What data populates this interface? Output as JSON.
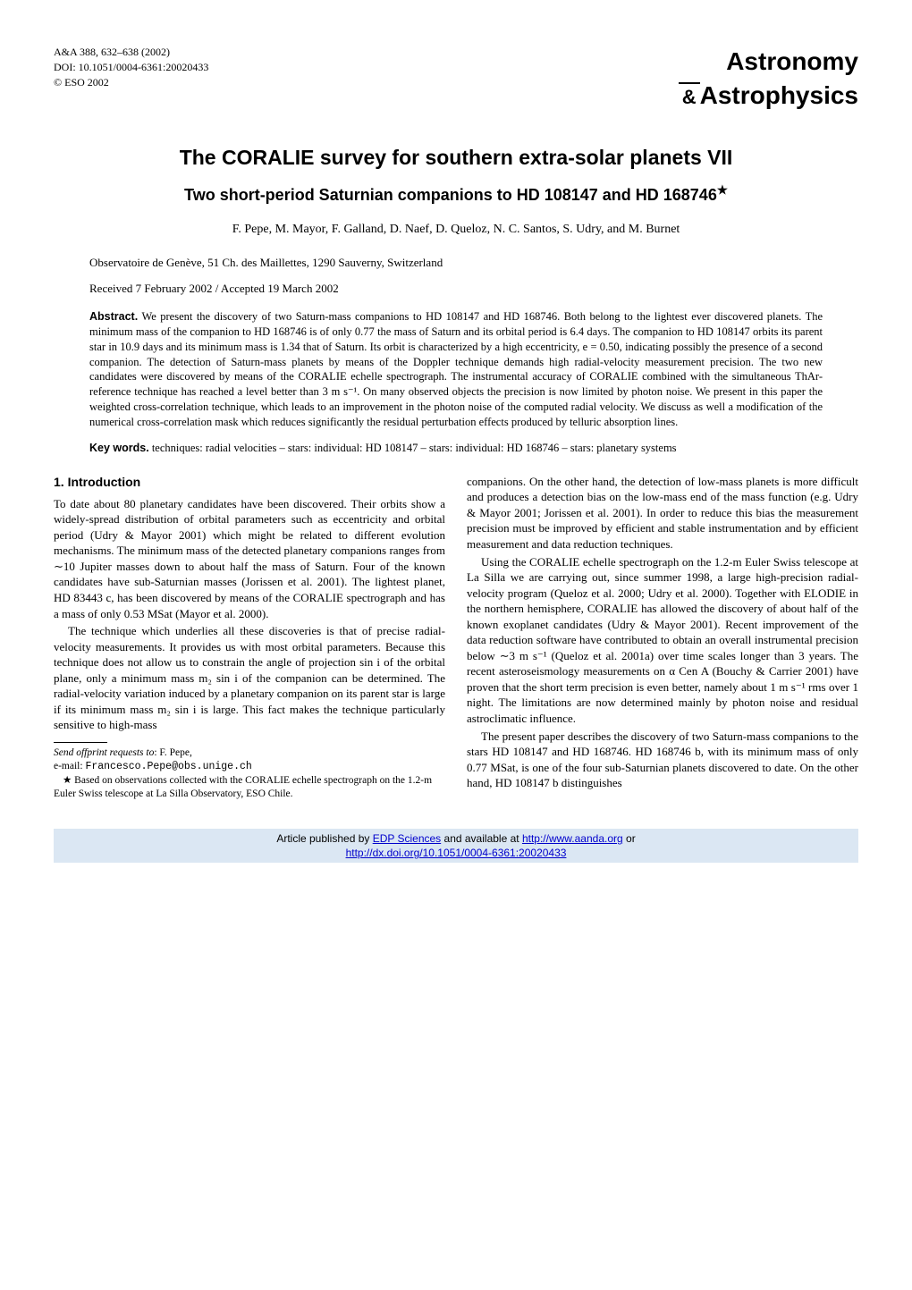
{
  "header": {
    "journal_ref": "A&A 388, 632–638 (2002)",
    "doi": "DOI: 10.1051/0004-6361:20020433",
    "copyright": "© ESO 2002",
    "logo_top": "Astronomy",
    "logo_amp": "&",
    "logo_bottom": "Astrophysics"
  },
  "title": "The CORALIE survey for southern extra-solar planets VII",
  "subtitle": "Two short-period Saturnian companions to HD 108147 and HD 168746",
  "subtitle_star": "★",
  "authors": "F. Pepe, M. Mayor, F. Galland, D. Naef, D. Queloz, N. C. Santos, S. Udry, and M. Burnet",
  "affiliation": "Observatoire de Genève, 51 Ch. des Maillettes, 1290 Sauverny, Switzerland",
  "dates": "Received 7 February 2002 / Accepted 19 March 2002",
  "abstract_label": "Abstract.",
  "abstract_text": "We present the discovery of two Saturn-mass companions to HD 108147 and HD 168746. Both belong to the lightest ever discovered planets. The minimum mass of the companion to HD 168746 is of only 0.77 the mass of Saturn and its orbital period is 6.4 days. The companion to HD 108147 orbits its parent star in 10.9 days and its minimum mass is 1.34 that of Saturn. Its orbit is characterized by a high eccentricity, e = 0.50, indicating possibly the presence of a second companion. The detection of Saturn-mass planets by means of the Doppler technique demands high radial-velocity measurement precision. The two new candidates were discovered by means of the CORALIE echelle spectrograph. The instrumental accuracy of CORALIE combined with the simultaneous ThAr-reference technique has reached a level better than 3 m s⁻¹. On many observed objects the precision is now limited by photon noise. We present in this paper the weighted cross-correlation technique, which leads to an improvement in the photon noise of the computed radial velocity. We discuss as well a modification of the numerical cross-correlation mask which reduces significantly the residual perturbation effects produced by telluric absorption lines.",
  "keywords_label": "Key words.",
  "keywords_text": "techniques: radial velocities – stars: individual: HD 108147 – stars: individual: HD 168746 – stars: planetary systems",
  "section1": {
    "heading": "1. Introduction",
    "p1": "To date about 80 planetary candidates have been discovered. Their orbits show a widely-spread distribution of orbital parameters such as eccentricity and orbital period (Udry & Mayor 2001) which might be related to different evolution mechanisms. The minimum mass of the detected planetary companions ranges from ∼10 Jupiter masses down to about half the mass of Saturn. Four of the known candidates have sub-Saturnian masses (Jorissen et al. 2001). The lightest planet, HD 83443 c, has been discovered by means of the CORALIE spectrograph and has a mass of only 0.53 MSat (Mayor et al. 2000).",
    "p2": "The technique which underlies all these discoveries is that of precise radial-velocity measurements. It provides us with most orbital parameters. Because this technique does not allow us to constrain the angle of projection sin i of the orbital plane, only a minimum mass m₂ sin i of the companion can be determined. The radial-velocity variation induced by a planetary companion on its parent star is large if its minimum mass m₂ sin i is large. This fact makes the technique particularly sensitive to high-mass",
    "p3": "companions. On the other hand, the detection of low-mass planets is more difficult and produces a detection bias on the low-mass end of the mass function (e.g. Udry & Mayor 2001; Jorissen et al. 2001). In order to reduce this bias the measurement precision must be improved by efficient and stable instrumentation and by efficient measurement and data reduction techniques.",
    "p4": "Using the CORALIE echelle spectrograph on the 1.2-m Euler Swiss telescope at La Silla we are carrying out, since summer 1998, a large high-precision radial-velocity program (Queloz et al. 2000; Udry et al. 2000). Together with ELODIE in the northern hemisphere, CORALIE has allowed the discovery of about half of the known exoplanet candidates (Udry & Mayor 2001). Recent improvement of the data reduction software have contributed to obtain an overall instrumental precision below ∼3 m s⁻¹ (Queloz et al. 2001a) over time scales longer than 3 years. The recent asteroseismology measurements on α Cen A (Bouchy & Carrier 2001) have proven that the short term precision is even better, namely about 1 m s⁻¹ rms over 1 night. The limitations are now determined mainly by photon noise and residual astroclimatic influence.",
    "p5": "The present paper describes the discovery of two Saturn-mass companions to the stars HD 108147 and HD 168746. HD 168746 b, with its minimum mass of only 0.77 MSat, is one of the four sub-Saturnian planets discovered to date. On the other hand, HD 108147 b distinguishes"
  },
  "footnotes": {
    "offprint_label": "Send offprint requests to",
    "offprint_name": ": F. Pepe,",
    "email_label": "e-mail: ",
    "email": "Francesco.Pepe@obs.unige.ch",
    "star_note": "★ Based on observations collected with the CORALIE echelle spectrograph on the 1.2-m Euler Swiss telescope at La Silla Observatory, ESO Chile."
  },
  "footer": {
    "line1_prefix": "Article published by ",
    "line1_link1": "EDP Sciences",
    "line1_mid": " and available at ",
    "line1_link2": "http://www.aanda.org",
    "line1_suffix": " or",
    "line2_link": "http://dx.doi.org/10.1051/0004-6361:20020433"
  }
}
